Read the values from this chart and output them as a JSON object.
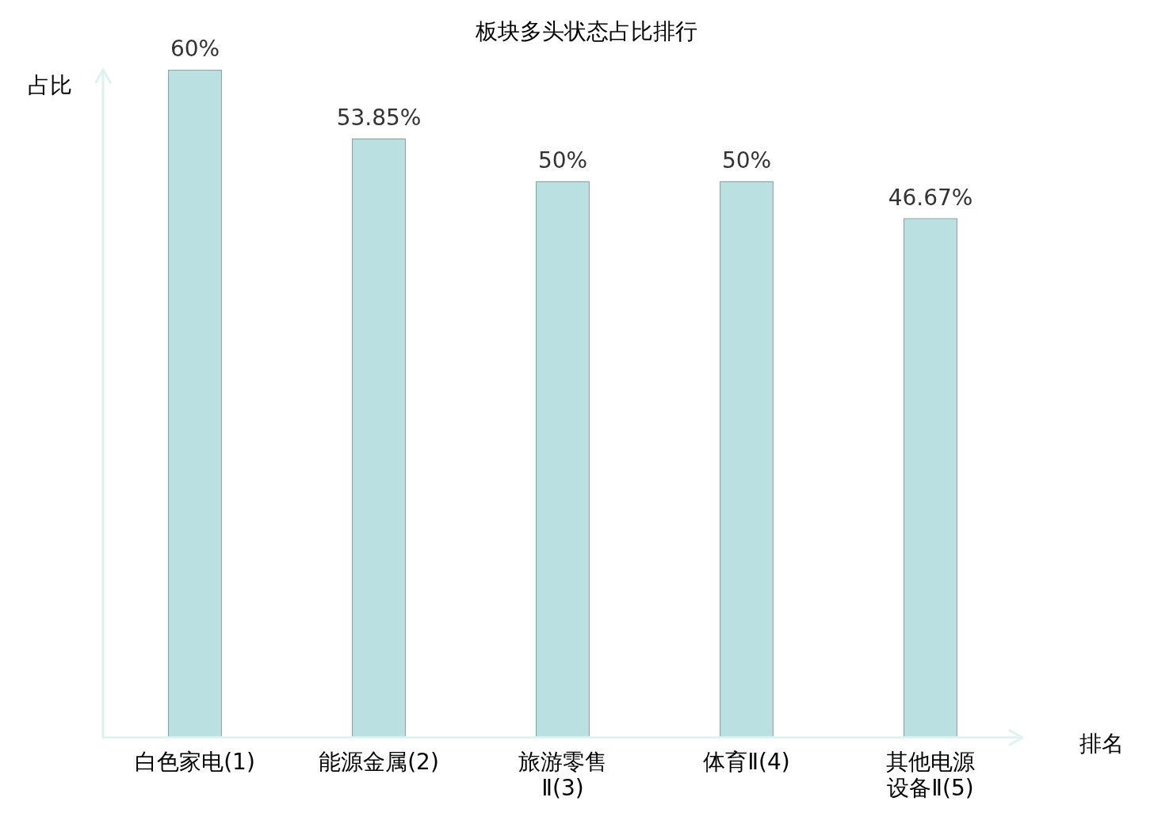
{
  "chart_data": {
    "type": "bar",
    "title": "板块多头状态占比排行",
    "xlabel": "排名",
    "ylabel": "占比",
    "categories": [
      "白色家电(1)",
      "能源金属(2)",
      "旅游零售Ⅱ(3)",
      "体育Ⅱ(4)",
      "其他电源设备Ⅱ(5)"
    ],
    "values": [
      60,
      53.85,
      50,
      50,
      46.67
    ],
    "value_labels": [
      "60%",
      "53.85%",
      "50%",
      "50%",
      "46.67%"
    ],
    "color": "#bbe0e2",
    "ylim": [
      0,
      60
    ],
    "grid": false,
    "legend": false
  }
}
